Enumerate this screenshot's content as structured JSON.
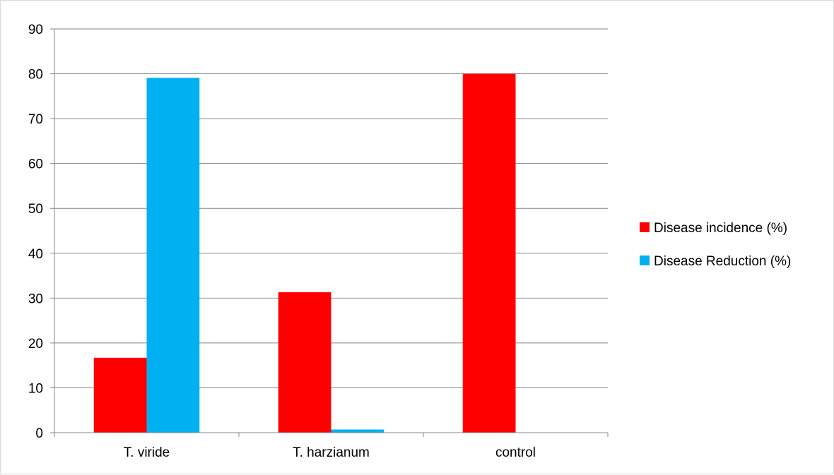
{
  "chart_data": {
    "type": "bar",
    "title": "",
    "xlabel": "",
    "ylabel": "",
    "categories": [
      "T. viride",
      "T. harzianum",
      "control"
    ],
    "series": [
      {
        "name": "Disease incidence (%)",
        "color": "#FF0000",
        "values": [
          16.7,
          31.3,
          80.0
        ]
      },
      {
        "name": "Disease Reduction (%)",
        "color": "#00B0F0",
        "values": [
          79.1,
          0.7,
          0
        ]
      }
    ],
    "ylim": [
      0,
      90
    ],
    "yticks": [
      0,
      10,
      20,
      30,
      40,
      50,
      60,
      70,
      80,
      90
    ],
    "grid": true,
    "legend_position": "right"
  }
}
